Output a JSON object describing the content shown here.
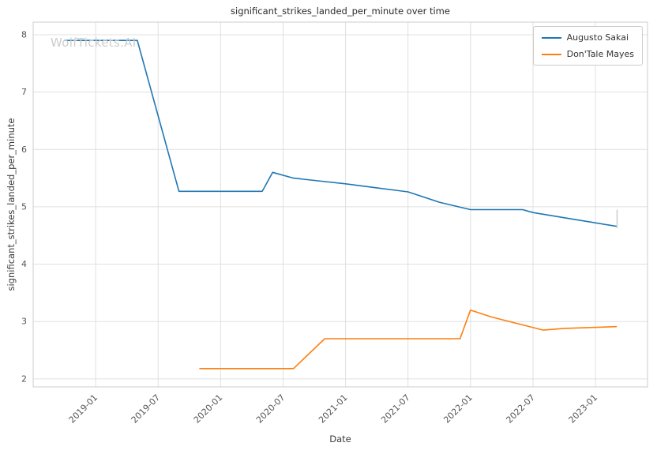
{
  "watermark": "WolfTickets.AI",
  "chart_data": {
    "type": "line",
    "title": "significant_strikes_landed_per_minute over time",
    "xlabel": "Date",
    "ylabel": "significant_strikes_landed_per_minute",
    "x_tick_labels": [
      "2019-01",
      "2019-07",
      "2020-01",
      "2020-07",
      "2021-01",
      "2021-07",
      "2022-01",
      "2022-07",
      "2023-01"
    ],
    "y_ticks": [
      2,
      3,
      4,
      5,
      6,
      7,
      8
    ],
    "xlim": [
      "2018-07",
      "2023-06"
    ],
    "ylim": [
      1.86,
      8.22
    ],
    "grid": true,
    "legend_position": "upper right",
    "series": [
      {
        "name": "Augusto Sakai",
        "color": "#1f77b4",
        "points": [
          [
            "2018-10",
            7.9
          ],
          [
            "2019-05",
            7.9
          ],
          [
            "2019-09",
            5.27
          ],
          [
            "2020-05",
            5.27
          ],
          [
            "2020-06",
            5.6
          ],
          [
            "2020-08",
            5.5
          ],
          [
            "2020-10",
            5.46
          ],
          [
            "2021-01",
            5.4
          ],
          [
            "2021-04",
            5.33
          ],
          [
            "2021-07",
            5.26
          ],
          [
            "2021-10",
            5.08
          ],
          [
            "2022-01",
            4.95
          ],
          [
            "2022-06",
            4.95
          ],
          [
            "2022-07",
            4.9
          ],
          [
            "2022-11",
            4.78
          ],
          [
            "2023-03",
            4.66
          ]
        ]
      },
      {
        "name": "Don'Tale Mayes",
        "color": "#ff7f0e",
        "points": [
          [
            "2019-11",
            2.18
          ],
          [
            "2020-08",
            2.18
          ],
          [
            "2020-11",
            2.7
          ],
          [
            "2021-12",
            2.7
          ],
          [
            "2022-01",
            3.2
          ],
          [
            "2022-03",
            3.08
          ],
          [
            "2022-08",
            2.85
          ],
          [
            "2022-10",
            2.88
          ],
          [
            "2023-03",
            2.91
          ]
        ]
      }
    ]
  }
}
